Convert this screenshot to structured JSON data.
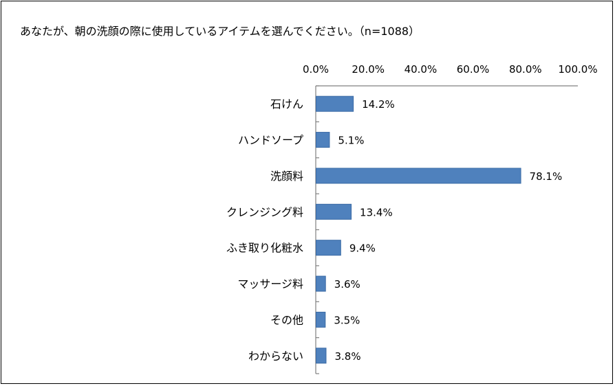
{
  "chart_data": {
    "type": "bar",
    "orientation": "horizontal",
    "title": "あなたが、朝の洗顔の際に使用しているアイテムを選んでください。（n=1088）",
    "categories": [
      "石けん",
      "ハンドソープ",
      "洗顔料",
      "クレンジング料",
      "ふき取り化粧水",
      "マッサージ料",
      "その他",
      "わからない"
    ],
    "values": [
      14.2,
      5.1,
      78.1,
      13.4,
      9.4,
      3.6,
      3.5,
      3.8
    ],
    "value_labels": [
      "14.2%",
      "5.1%",
      "78.1%",
      "13.4%",
      "9.4%",
      "3.6%",
      "3.5%",
      "3.8%"
    ],
    "xlim": [
      0,
      100
    ],
    "x_ticks": [
      "0.0%",
      "20.0%",
      "40.0%",
      "60.0%",
      "80.0%",
      "100.0%"
    ],
    "x_axis_position": "top",
    "grid": false,
    "legend": "none",
    "bar_color": "#4f81bd"
  }
}
